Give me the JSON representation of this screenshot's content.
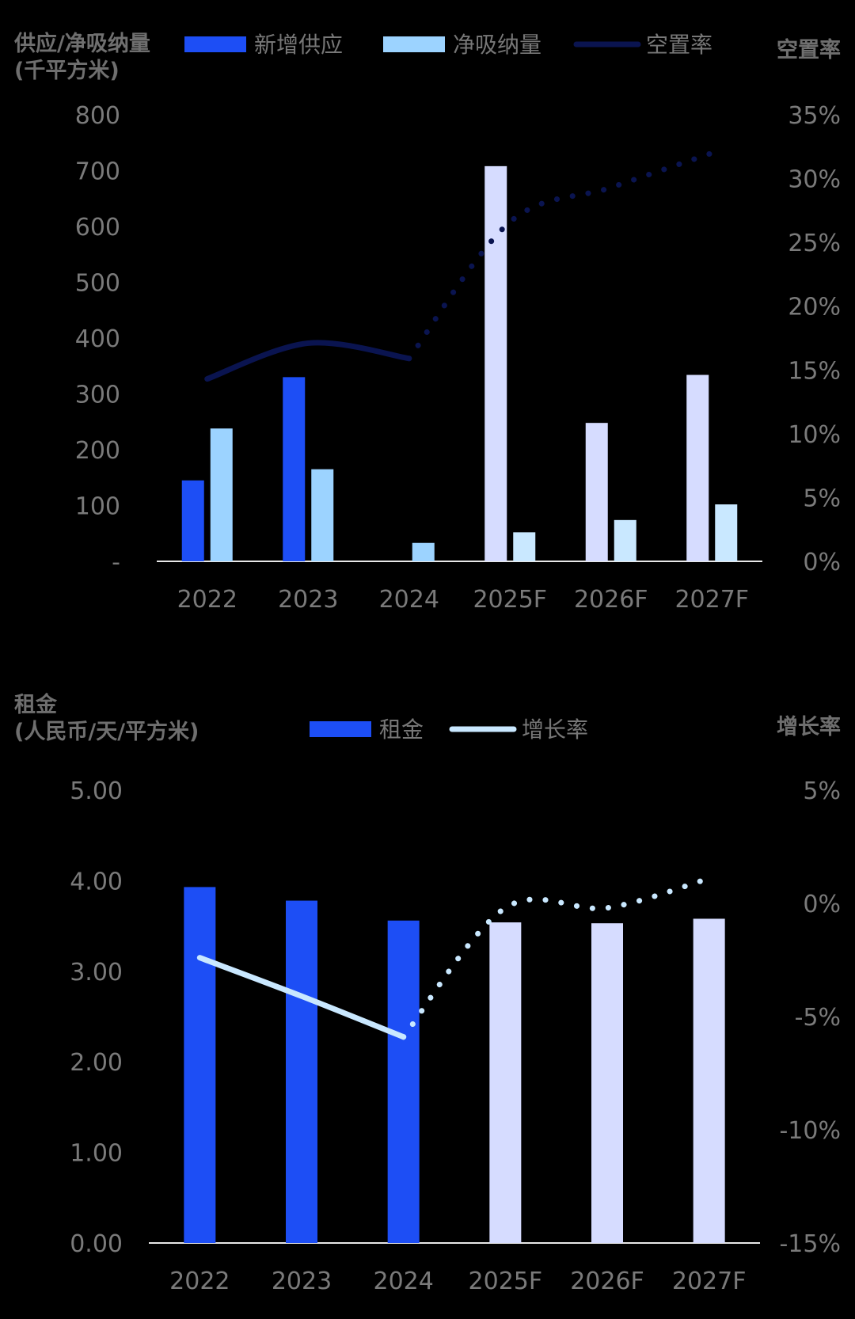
{
  "chart_data": [
    {
      "type": "bar",
      "ylabel_left": [
        "供应/净吸纳量",
        "(千平方米)"
      ],
      "ylabel_right": "空置率",
      "legend": [
        "新增供应",
        "净吸纳量",
        "空置率"
      ],
      "categories": [
        "2022",
        "2023",
        "2024",
        "2025F",
        "2026F",
        "2027F"
      ],
      "y_ticks": [
        "-",
        "100",
        "200",
        "300",
        "400",
        "500",
        "600",
        "700",
        "800"
      ],
      "y2_ticks": [
        "0%",
        "5%",
        "10%",
        "15%",
        "20%",
        "25%",
        "30%",
        "35%"
      ],
      "ylim": [
        0,
        800
      ],
      "y2lim": [
        0,
        35
      ],
      "series": [
        {
          "name": "新增供应",
          "values": [
            145,
            330,
            0,
            708,
            248,
            334
          ]
        },
        {
          "name": "净吸纳量",
          "values": [
            238,
            165,
            33,
            52,
            74,
            102
          ]
        },
        {
          "name": "空置率",
          "values": [
            14.3,
            17.1,
            15.9,
            26.6,
            29.3,
            32.0
          ]
        }
      ],
      "colors": {
        "supply": "#1d4ef5",
        "absorption": "#9cd3ff",
        "forecast_supply": "#d6dcff",
        "forecast_absorption": "#c9e8ff",
        "vacancy": "#0a1450"
      }
    },
    {
      "type": "bar",
      "ylabel_left": [
        "租金",
        "(人民币/天/平方米)"
      ],
      "ylabel_right": "增长率",
      "legend": [
        "租金",
        "增长率"
      ],
      "categories": [
        "2022",
        "2023",
        "2024",
        "2025F",
        "2026F",
        "2027F"
      ],
      "y_ticks": [
        "0.00",
        "1.00",
        "2.00",
        "3.00",
        "4.00",
        "5.00"
      ],
      "y2_ticks": [
        "-15%",
        "-10%",
        "-5%",
        "0%",
        "5%"
      ],
      "ylim": [
        0,
        5
      ],
      "y2lim": [
        -15,
        5
      ],
      "series": [
        {
          "name": "租金",
          "values": [
            3.93,
            3.78,
            3.56,
            3.54,
            3.53,
            3.58
          ]
        },
        {
          "name": "增长率",
          "values": [
            -2.4,
            -4.1,
            -5.9,
            -0.2,
            -0.2,
            1.1
          ]
        }
      ],
      "colors": {
        "rent": "#1d4ef5",
        "forecast_rent": "#d6dcff",
        "growth": "#c9e8ff"
      }
    }
  ]
}
